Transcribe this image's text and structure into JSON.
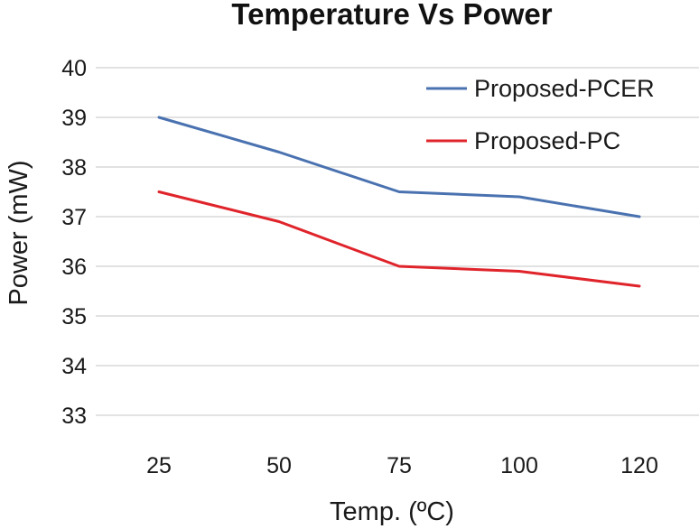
{
  "chart_data": {
    "type": "line",
    "title": "Temperature Vs Power",
    "xlabel": "Temp. (ºC)",
    "ylabel": "Power (mW)",
    "categories": [
      "25",
      "50",
      "75",
      "100",
      "120"
    ],
    "ylim": [
      33,
      40
    ],
    "yticks": [
      40,
      39,
      38,
      37,
      36,
      35,
      34,
      33
    ],
    "grid": true,
    "legend_position": "top-right",
    "series": [
      {
        "name": "Proposed-PCER",
        "color": "#4a72b0",
        "values": [
          39.0,
          38.3,
          37.5,
          37.4,
          37.0
        ]
      },
      {
        "name": "Proposed-PC",
        "color": "#e0242b",
        "values": [
          37.5,
          36.9,
          36.0,
          35.9,
          35.6
        ]
      }
    ]
  }
}
